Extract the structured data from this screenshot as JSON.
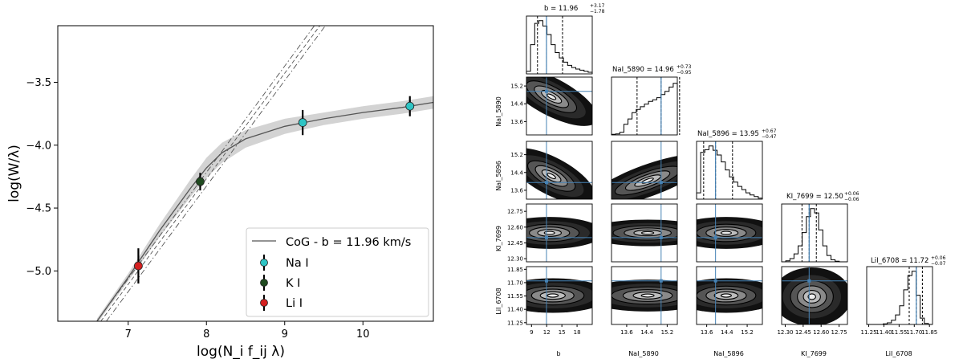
{
  "chart_data": [
    {
      "type": "line",
      "title": "",
      "xlabel": "log(N_i f_ij λ)",
      "ylabel": "log(W/λ)",
      "xlim": [
        6.1,
        10.9
      ],
      "ylim": [
        -5.4,
        -3.05
      ],
      "xticks": [
        7,
        8,
        9,
        10
      ],
      "yticks": [
        -3.5,
        -4.0,
        -4.5,
        -5.0
      ],
      "xtick_labels": [
        "7",
        "8",
        "9",
        "10"
      ],
      "ytick_labels": [
        "−3.5",
        "−4.0",
        "−4.5",
        "−5.0"
      ],
      "curve": {
        "name": "CoG - b = 11.96 km/s",
        "x": [
          6.6,
          7.0,
          7.4,
          7.8,
          8.0,
          8.2,
          8.5,
          9.0,
          9.5,
          10.0,
          10.5,
          10.9
        ],
        "y": [
          -5.4,
          -5.05,
          -4.68,
          -4.34,
          -4.18,
          -4.06,
          -3.95,
          -3.85,
          -3.79,
          -3.74,
          -3.7,
          -3.66
        ],
        "band_halfwidth": [
          0.02,
          0.03,
          0.05,
          0.07,
          0.08,
          0.08,
          0.07,
          0.06,
          0.05,
          0.05,
          0.05,
          0.05
        ]
      },
      "linear_lines": [
        {
          "style": "dashdot",
          "x": [
            6.6,
            9.38
          ],
          "y": [
            -5.4,
            -3.05
          ]
        },
        {
          "style": "dashed",
          "x": [
            6.65,
            9.45
          ],
          "y": [
            -5.4,
            -3.05
          ]
        },
        {
          "style": "dashdot",
          "x": [
            6.72,
            9.52
          ],
          "y": [
            -5.4,
            -3.05
          ]
        }
      ],
      "points": [
        {
          "species": "Na I",
          "x": 9.23,
          "y": -3.82,
          "yerr": 0.1,
          "color": "#2ec4c4"
        },
        {
          "species": "Na I",
          "x": 10.6,
          "y": -3.69,
          "yerr": 0.08,
          "color": "#2ec4c4"
        },
        {
          "species": "K I",
          "x": 7.92,
          "y": -4.29,
          "yerr": 0.07,
          "color": "#1f4a1f"
        },
        {
          "species": "Li I",
          "x": 7.13,
          "y": -4.96,
          "yerr": 0.14,
          "color": "#d42020"
        }
      ],
      "legend": [
        {
          "label": "CoG - b = 11.96 km/s",
          "kind": "line",
          "color": "#555555"
        },
        {
          "label": "Na I",
          "kind": "marker",
          "color": "#2ec4c4"
        },
        {
          "label": "K I",
          "kind": "marker",
          "color": "#1f4a1f"
        },
        {
          "label": "Li I",
          "kind": "marker",
          "color": "#d42020"
        }
      ],
      "legend_location": "lower-right"
    },
    {
      "type": "corner",
      "params": [
        "b",
        "NaI_5890",
        "NaI_5896",
        "KI_7699",
        "LiI_6708"
      ],
      "truths": [
        11.96,
        14.96,
        13.95,
        12.5,
        11.72
      ],
      "ranges": [
        [
          8,
          21
        ],
        [
          13.0,
          15.6
        ],
        [
          13.2,
          15.8
        ],
        [
          12.27,
          12.82
        ],
        [
          11.23,
          11.88
        ]
      ],
      "tick_values": [
        [
          9,
          12,
          15,
          18
        ],
        [
          13.6,
          14.4,
          15.2
        ],
        [
          13.6,
          14.4,
          15.2
        ],
        [
          12.3,
          12.45,
          12.6,
          12.75
        ],
        [
          11.25,
          11.4,
          11.55,
          11.7,
          11.85
        ]
      ],
      "tick_labels": [
        [
          "9",
          "12",
          "15",
          "18"
        ],
        [
          "13.6",
          "14.4",
          "15.2"
        ],
        [
          "13.6",
          "14.4",
          "15.2"
        ],
        [
          "12.30",
          "12.45",
          "12.60",
          "12.75"
        ],
        [
          "11.25",
          "11.40",
          "11.55",
          "11.70",
          "11.85"
        ]
      ],
      "titles": [
        {
          "main": "b = 11.96",
          "sup": "+3.17",
          "sub": "−1.78"
        },
        {
          "main": "NaI_5890 = 14.96",
          "sup": "+0.73",
          "sub": "−0.95"
        },
        {
          "main": "NaI_5896 = 13.95",
          "sup": "+0.67",
          "sub": "−0.47"
        },
        {
          "main": "KI_7699 = 12.50",
          "sup": "+0.06",
          "sub": "−0.06"
        },
        {
          "main": "LiI_6708 = 11.72",
          "sup": "+0.06",
          "sub": "−0.07"
        }
      ],
      "quantiles": [
        [
          10.18,
          11.96,
          15.13
        ],
        [
          14.01,
          14.96,
          15.69
        ],
        [
          13.48,
          13.95,
          14.62
        ],
        [
          12.44,
          12.5,
          12.56
        ],
        [
          11.65,
          11.72,
          11.78
        ]
      ],
      "histograms": [
        [
          0.05,
          0.55,
          0.95,
          1.0,
          0.9,
          0.74,
          0.55,
          0.4,
          0.3,
          0.22,
          0.16,
          0.12,
          0.09,
          0.07,
          0.05,
          0.03
        ],
        [
          0.01,
          0.02,
          0.05,
          0.2,
          0.3,
          0.42,
          0.48,
          0.53,
          0.58,
          0.63,
          0.66,
          0.7,
          0.76,
          0.82,
          0.9,
          0.97
        ],
        [
          0.12,
          0.88,
          0.93,
          1.0,
          0.92,
          0.83,
          0.7,
          0.55,
          0.42,
          0.32,
          0.24,
          0.18,
          0.12,
          0.08,
          0.05,
          0.02
        ],
        [
          0.0,
          0.02,
          0.06,
          0.15,
          0.3,
          0.55,
          0.85,
          1.0,
          0.92,
          0.6,
          0.3,
          0.12,
          0.04,
          0.01,
          0.0,
          0.0
        ],
        [
          0.0,
          0.0,
          0.0,
          0.0,
          0.01,
          0.03,
          0.08,
          0.18,
          0.35,
          0.65,
          0.92,
          1.0,
          0.55,
          0.12,
          0.02,
          0.0
        ]
      ],
      "xlabels": [
        "b",
        "NaI_5890",
        "NaI_5896",
        "KI_7699",
        "LiI_6708"
      ],
      "ylabels": [
        "NaI_5890",
        "NaI_5896",
        "KI_7699",
        "LiI_6708"
      ],
      "truth_color": "#4682b4"
    }
  ]
}
